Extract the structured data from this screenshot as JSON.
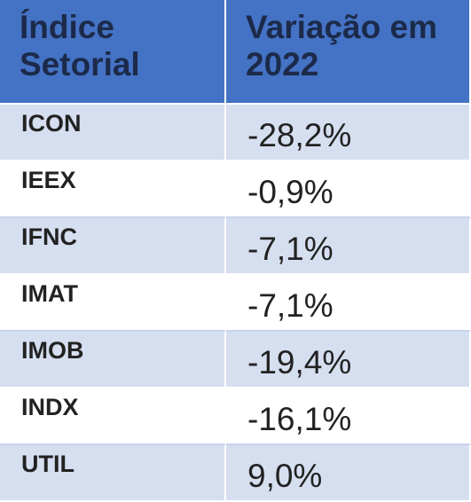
{
  "table": {
    "header": [
      "Índice Setorial",
      "Variação em 2022"
    ],
    "rows": [
      [
        "ICON",
        "-28,2%"
      ],
      [
        "IEEX",
        "-0,9%"
      ],
      [
        "IFNC",
        "-7,1%"
      ],
      [
        "IMAT",
        "-7,1%"
      ],
      [
        "IMOB",
        "-19,4%"
      ],
      [
        "INDX",
        "-16,1%"
      ],
      [
        "UTIL",
        "9,0%"
      ]
    ]
  }
}
